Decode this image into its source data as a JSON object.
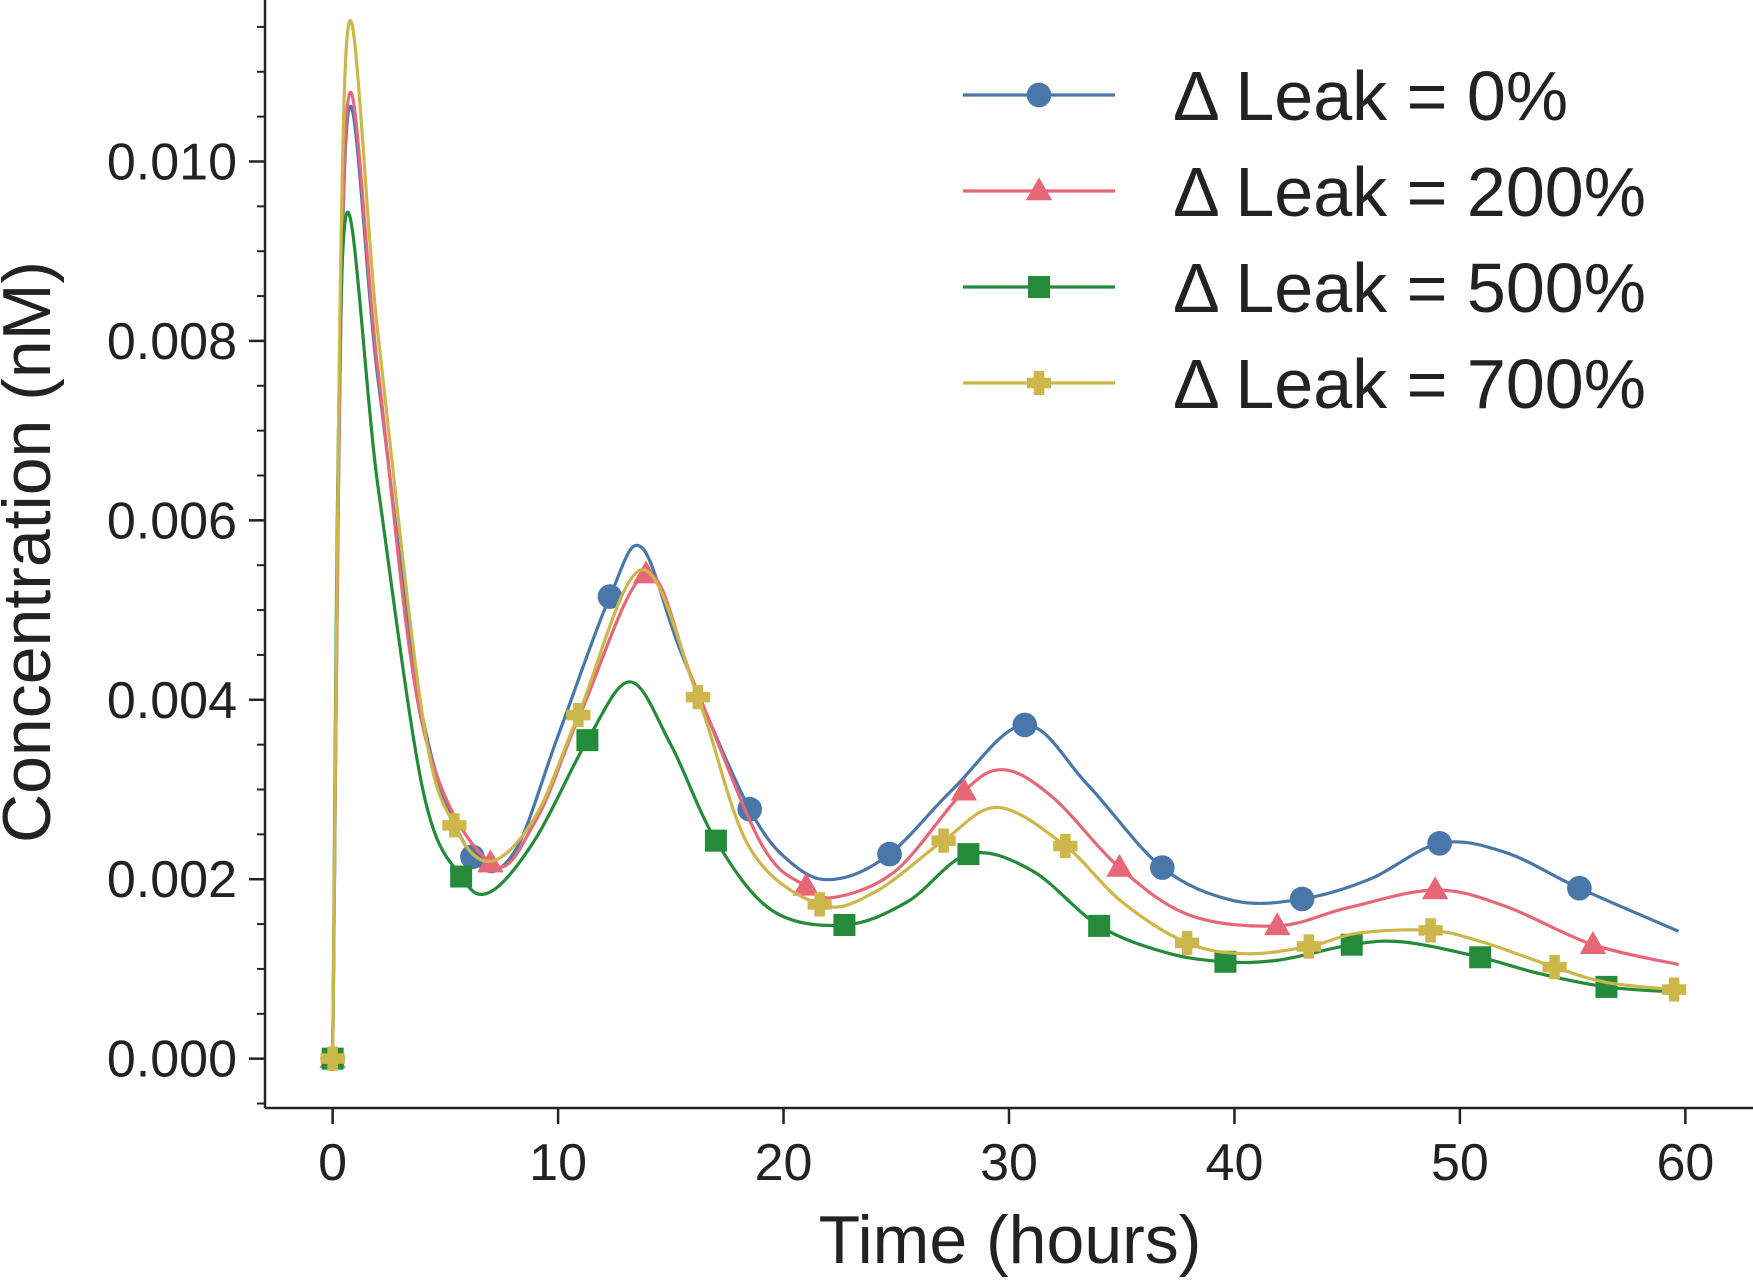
{
  "chart_data": {
    "type": "line",
    "xlabel": "Time (hours)",
    "ylabel": "Concentration (nM)",
    "xlim": [
      -3,
      63
    ],
    "ylim": [
      -0.00055,
      0.0118
    ],
    "x_ticks": [
      0,
      10,
      20,
      30,
      40,
      50,
      60
    ],
    "x_tick_labels": [
      "0",
      "10",
      "20",
      "30",
      "40",
      "50",
      "60"
    ],
    "y_ticks": [
      0,
      0.002,
      0.004,
      0.006,
      0.008,
      0.01
    ],
    "y_tick_labels": [
      "0.000",
      "0.002",
      "0.004",
      "0.006",
      "0.008",
      "0.010"
    ],
    "y_minor_tick_step": 0.0005,
    "grid": false,
    "legend_position": "top-right",
    "series": [
      {
        "name": "Δ Leak = 0%",
        "color": "#4a77aa",
        "marker": "circle",
        "x": [
          0,
          0.6,
          2,
          4,
          6.2,
          8,
          10,
          12.3,
          13.7,
          15.5,
          18.5,
          20.5,
          22.3,
          24.7,
          27.5,
          30.7,
          33.5,
          36.8,
          40,
          43,
          46,
          49.1,
          52,
          55.3,
          59.7
        ],
        "y": [
          0,
          0.0103,
          0.0076,
          0.0038,
          0.00225,
          0.00228,
          0.0036,
          0.00515,
          0.0057,
          0.0045,
          0.00278,
          0.00215,
          0.002,
          0.00228,
          0.003,
          0.00372,
          0.00305,
          0.00213,
          0.00176,
          0.00178,
          0.002,
          0.0024,
          0.0023,
          0.0019,
          0.00142
        ]
      },
      {
        "name": "Δ Leak = 200%",
        "color": "#e66878",
        "marker": "triangle",
        "x": [
          0,
          0.6,
          2,
          4,
          7,
          9,
          11,
          13.9,
          16,
          19,
          21,
          22.3,
          25,
          28,
          29.8,
          32,
          34.9,
          38,
          41.9,
          45,
          48.9,
          52,
          55.9,
          59.7
        ],
        "y": [
          0,
          0.01045,
          0.0077,
          0.0037,
          0.00218,
          0.00265,
          0.00385,
          0.0054,
          0.0042,
          0.0024,
          0.00192,
          0.0018,
          0.0021,
          0.00298,
          0.00322,
          0.0029,
          0.00213,
          0.0016,
          0.00148,
          0.00168,
          0.00188,
          0.0017,
          0.00127,
          0.00105
        ]
      },
      {
        "name": "Δ Leak = 500%",
        "color": "#238b39",
        "marker": "square",
        "x": [
          0,
          0.5,
          2,
          4,
          5.7,
          7,
          9,
          11.3,
          13.2,
          15,
          17,
          19.5,
          22.7,
          25.5,
          28.2,
          31,
          34,
          37,
          39.6,
          42,
          45.2,
          47.5,
          50.9,
          53.5,
          56.5,
          59.7
        ],
        "y": [
          0,
          0.0092,
          0.0064,
          0.003,
          0.00203,
          0.00186,
          0.00245,
          0.00355,
          0.0042,
          0.0035,
          0.00243,
          0.00165,
          0.00149,
          0.00175,
          0.00228,
          0.0021,
          0.00148,
          0.00118,
          0.00108,
          0.0011,
          0.00127,
          0.0013,
          0.00113,
          0.00095,
          0.0008,
          0.00074
        ]
      },
      {
        "name": "Δ Leak = 700%",
        "color": "#cdb64a",
        "marker": "plus",
        "x": [
          0,
          0.6,
          2,
          4,
          5.4,
          7,
          9,
          10.9,
          13.7,
          16.2,
          18.5,
          21.6,
          24,
          27.1,
          29.5,
          32.5,
          35,
          37.9,
          40.5,
          43.3,
          45.5,
          48.7,
          51,
          54.2,
          56.5,
          59.5
        ],
        "y": [
          0,
          0.01125,
          0.0081,
          0.0038,
          0.0026,
          0.0022,
          0.0027,
          0.00383,
          0.00545,
          0.00403,
          0.00235,
          0.00172,
          0.00185,
          0.00243,
          0.0028,
          0.00237,
          0.00175,
          0.00129,
          0.00117,
          0.00125,
          0.0014,
          0.00143,
          0.0013,
          0.00102,
          0.00085,
          0.00077
        ]
      }
    ]
  }
}
